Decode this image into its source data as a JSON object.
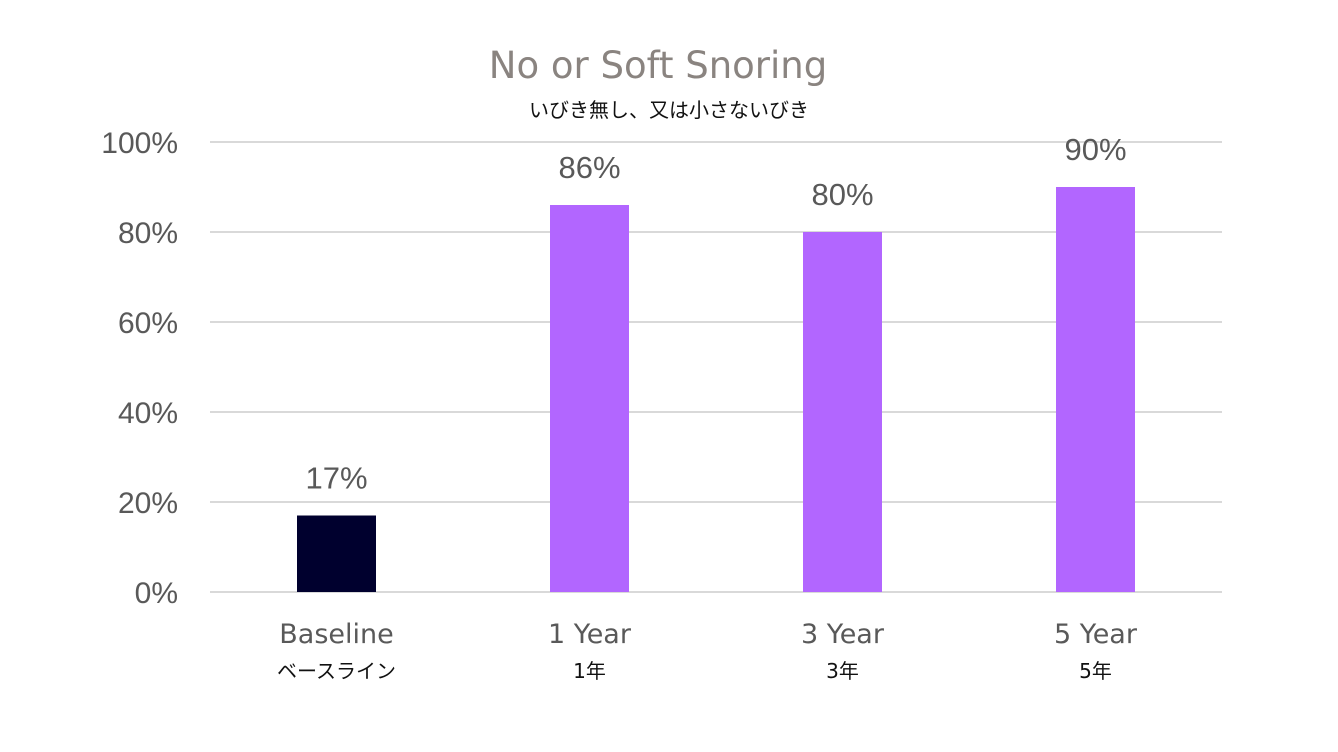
{
  "chart_data": {
    "type": "bar",
    "title": "No or Soft Snoring",
    "subtitle": "いびき無し、又は小さないびき",
    "categories": [
      "Baseline",
      "1 Year",
      "3 Year",
      "5 Year"
    ],
    "categories_sub": [
      "ベースライン",
      "1年",
      "3年",
      "5年"
    ],
    "values": [
      17,
      86,
      80,
      90
    ],
    "data_labels": [
      "17%",
      "86%",
      "80%",
      "90%"
    ],
    "bar_colors": [
      "#00002e",
      "#b266ff",
      "#b266ff",
      "#b266ff"
    ],
    "ylim": [
      0,
      100
    ],
    "yticks": [
      0,
      20,
      40,
      60,
      80,
      100
    ],
    "ytick_labels": [
      "0%",
      "20%",
      "40%",
      "60%",
      "80%",
      "100%"
    ],
    "grid": true,
    "legend": "none"
  }
}
